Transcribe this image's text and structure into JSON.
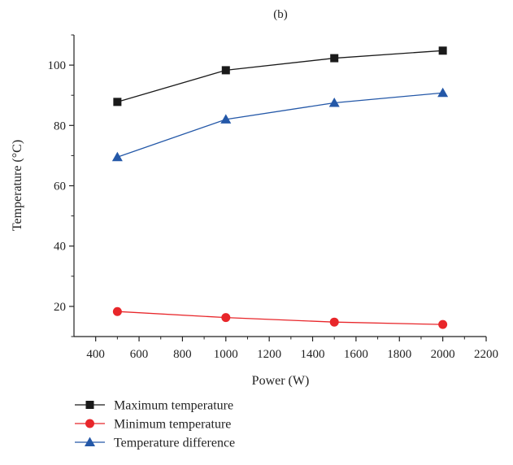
{
  "chart_data": {
    "type": "line",
    "panel_label": "(b)",
    "xlabel": "Power (W)",
    "ylabel": "Temperature (°C)",
    "xlim": [
      300,
      2200
    ],
    "ylim": [
      10,
      110
    ],
    "x_ticks": [
      400,
      600,
      800,
      1000,
      1200,
      1400,
      1600,
      1800,
      2000,
      2200
    ],
    "y_ticks": [
      20,
      40,
      60,
      80,
      100
    ],
    "grid": false,
    "legend_position": "bottom",
    "x": [
      500,
      1000,
      1500,
      2000
    ],
    "series": [
      {
        "name": "Maximum temperature",
        "values": [
          87.8,
          98.3,
          102.3,
          104.8
        ],
        "color": "#1a1a1a",
        "marker": "square"
      },
      {
        "name": "Minimum temperature",
        "values": [
          18.3,
          16.3,
          14.8,
          14.0
        ],
        "color": "#e8262a",
        "marker": "circle"
      },
      {
        "name": "Temperature difference",
        "values": [
          69.5,
          82.0,
          87.5,
          90.8
        ],
        "color": "#2458a8",
        "marker": "triangle"
      }
    ]
  }
}
